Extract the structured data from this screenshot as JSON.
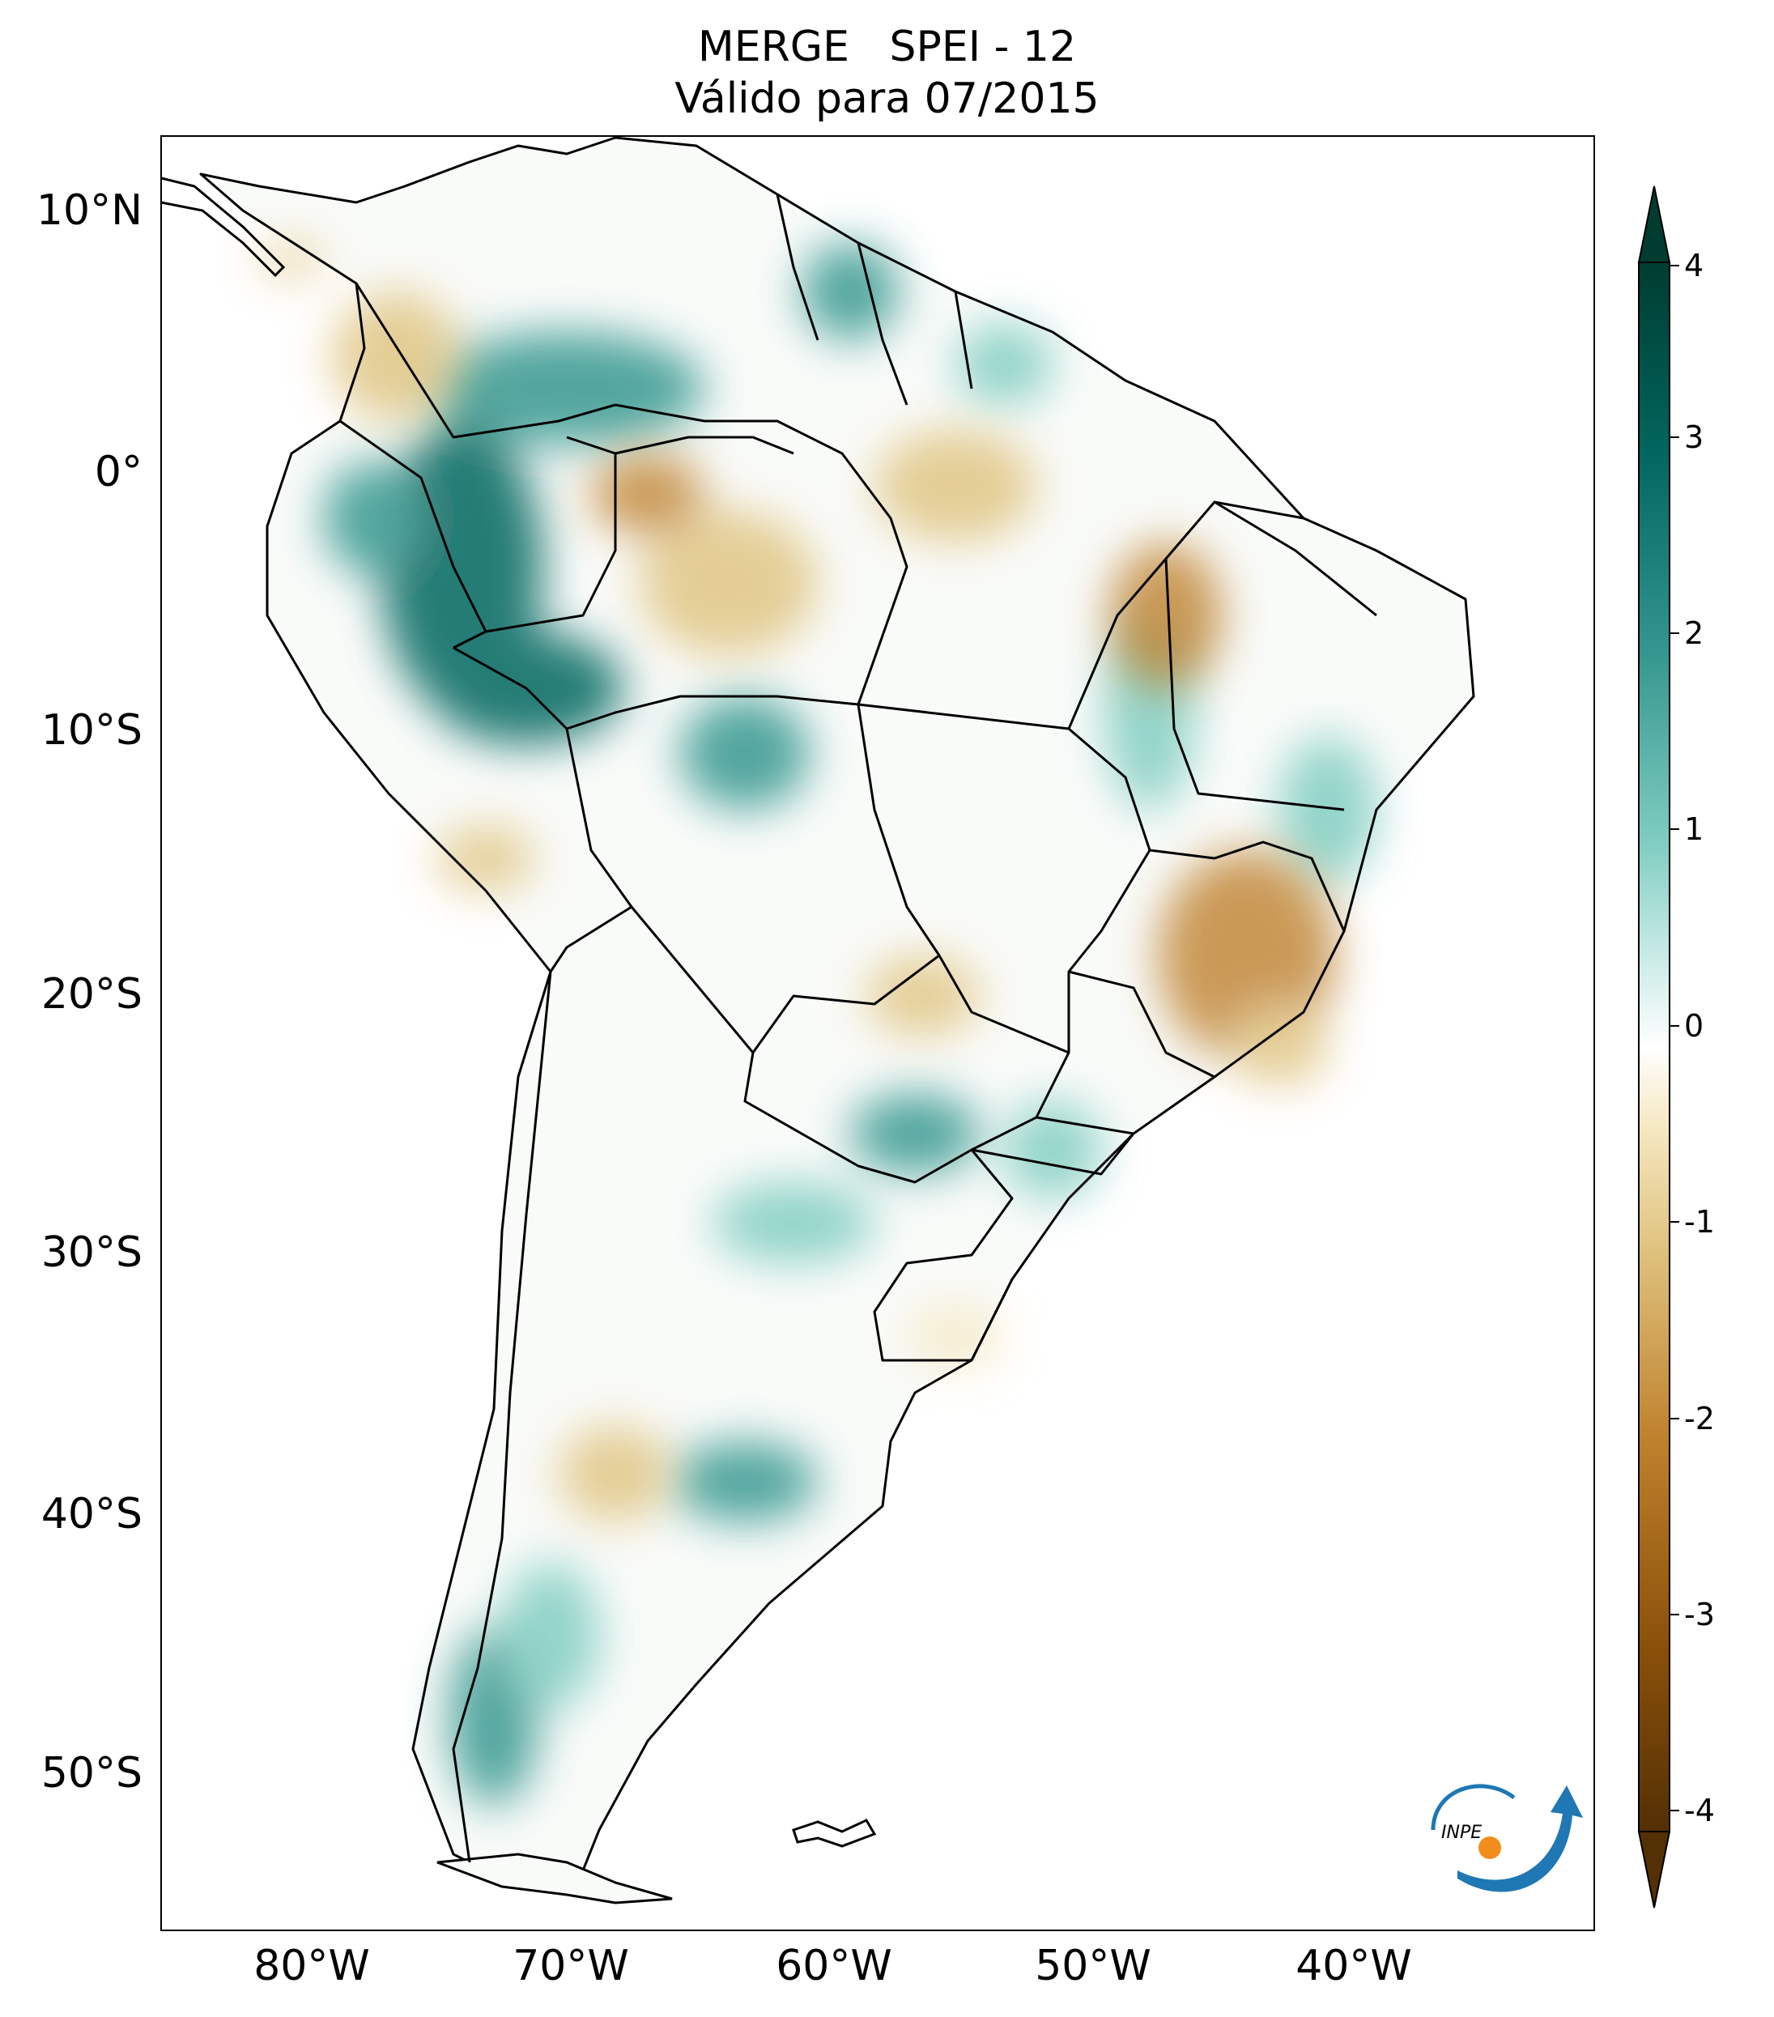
{
  "title": {
    "line1": "MERGE   SPEI - 12",
    "line2": "Válido para 07/2015"
  },
  "lat_labels": [
    "10°N",
    "0°",
    "10°S",
    "20°S",
    "30°S",
    "40°S",
    "50°S"
  ],
  "lon_labels": [
    "80°W",
    "70°W",
    "60°W",
    "50°W",
    "40°W"
  ],
  "colorbar": {
    "ticks": [
      "4",
      "3",
      "2",
      "1",
      "0",
      "-1",
      "-2",
      "-3",
      "-4"
    ],
    "min": -4,
    "max": 4,
    "colormap": [
      "#543005",
      "#8c510a",
      "#bf812d",
      "#dfc27d",
      "#f6e8c3",
      "#ffffff",
      "#c7eae5",
      "#80cdc1",
      "#35978f",
      "#01665e",
      "#003c30"
    ]
  },
  "logo": {
    "text": "INPE",
    "colors": [
      "#1f77b4",
      "#f28c1c"
    ]
  }
}
